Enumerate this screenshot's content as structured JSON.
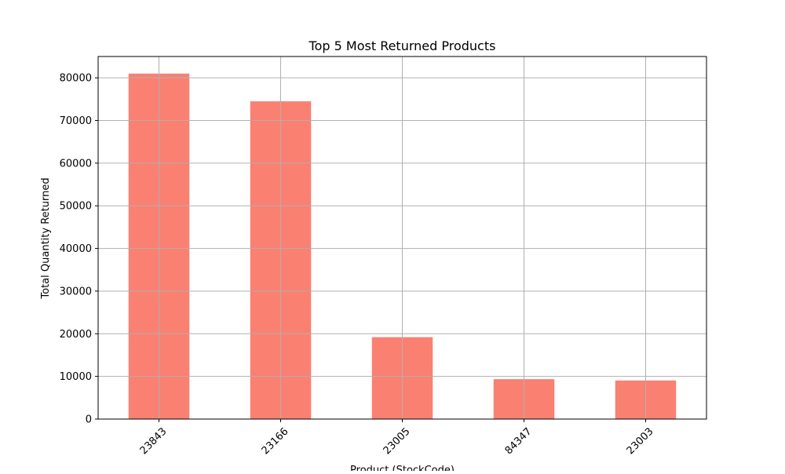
{
  "chart_data": {
    "type": "bar",
    "title": "Top 5 Most Returned Products",
    "xlabel": "Product (StockCode)",
    "ylabel": "Total Quantity Returned",
    "categories": [
      "23843",
      "23166",
      "23005",
      "84347",
      "23003"
    ],
    "values": [
      80995,
      74494,
      19200,
      9360,
      9050
    ],
    "ylim": [
      0,
      85000
    ],
    "yticks": [
      0,
      10000,
      20000,
      30000,
      40000,
      50000,
      60000,
      70000,
      80000
    ],
    "ytick_labels": [
      "0",
      "10000",
      "20000",
      "30000",
      "40000",
      "50000",
      "60000",
      "70000",
      "80000"
    ],
    "grid": true,
    "legend": "none",
    "bar_color": "#fa8072",
    "grid_color": "#b0b0b0"
  }
}
